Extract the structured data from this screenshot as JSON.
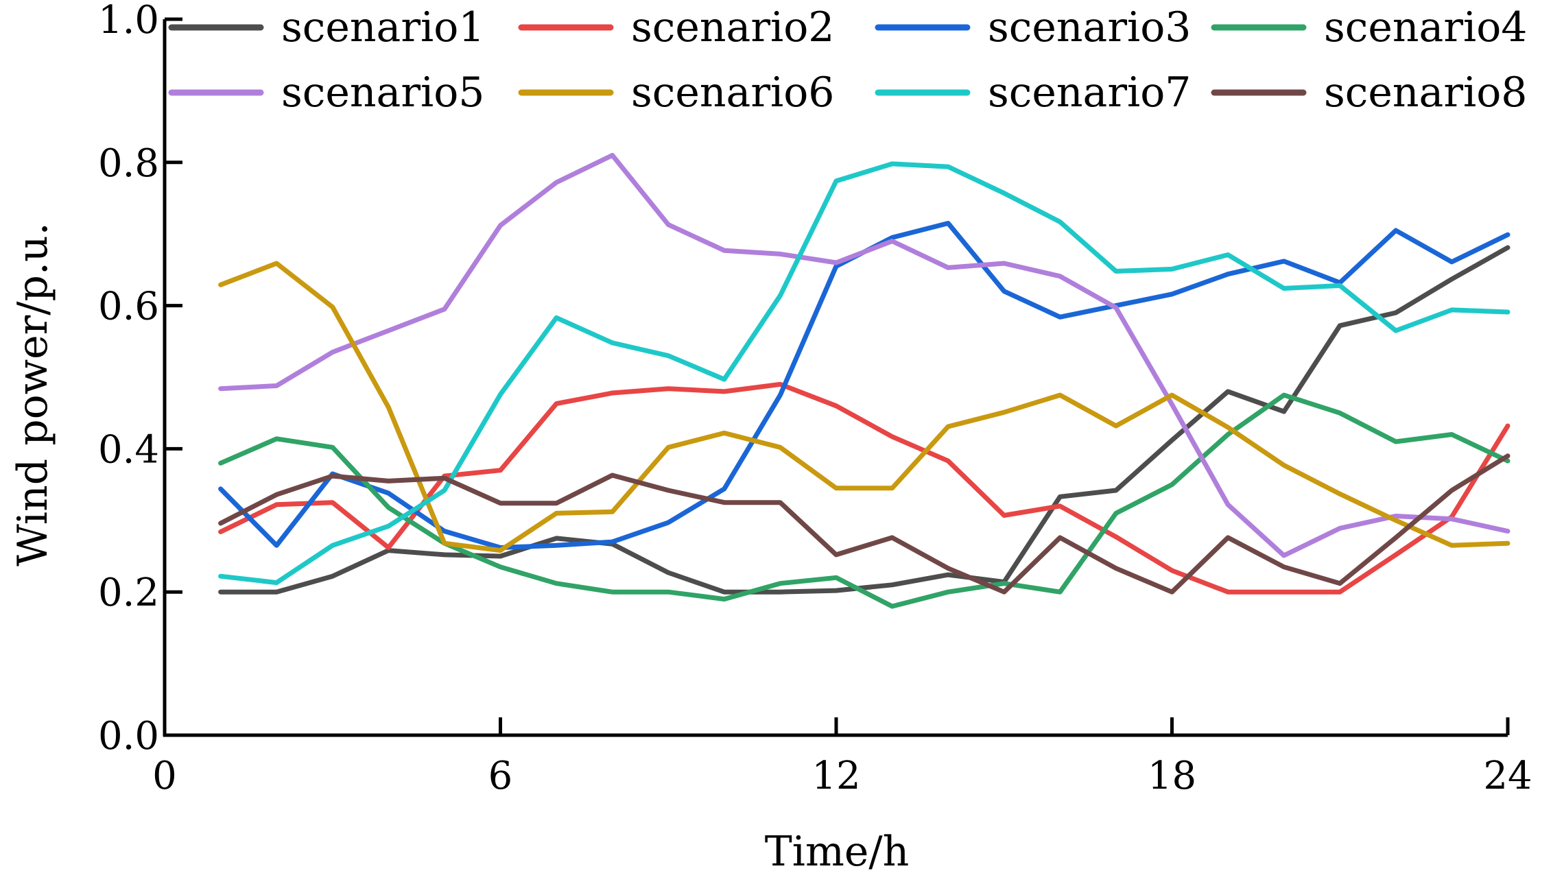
{
  "chart_data": {
    "type": "line",
    "title": "",
    "xlabel": "Time/h",
    "ylabel": "Wind power/p.u.",
    "xlim": [
      0,
      24
    ],
    "ylim": [
      0.0,
      1.0
    ],
    "xticks": [
      "0",
      "6",
      "12",
      "18",
      "24"
    ],
    "yticks": [
      "0.0",
      "0.2",
      "0.4",
      "0.6",
      "0.8",
      "1.0"
    ],
    "grid": false,
    "legend_position": "top",
    "x": [
      1,
      2,
      3,
      4,
      5,
      6,
      7,
      8,
      9,
      10,
      11,
      12,
      13,
      14,
      15,
      16,
      17,
      18,
      19,
      20,
      21,
      22,
      23,
      24
    ],
    "series": [
      {
        "name": "scenario1",
        "color": "#4d4d4d",
        "values": [
          0.2,
          0.2,
          0.222,
          0.258,
          0.252,
          0.25,
          0.275,
          0.267,
          0.227,
          0.2,
          0.2,
          0.202,
          0.21,
          0.224,
          0.214,
          0.333,
          0.342,
          0.412,
          0.48,
          0.452,
          0.572,
          0.59,
          0.637,
          0.681
        ]
      },
      {
        "name": "scenario2",
        "color": "#e84545",
        "values": [
          0.284,
          0.322,
          0.325,
          0.262,
          0.362,
          0.37,
          0.463,
          0.478,
          0.484,
          0.48,
          0.49,
          0.46,
          0.417,
          0.383,
          0.307,
          0.32,
          0.277,
          0.23,
          0.2,
          0.2,
          0.2,
          0.252,
          0.305,
          0.432
        ]
      },
      {
        "name": "scenario3",
        "color": "#1a66d6",
        "values": [
          0.344,
          0.265,
          0.365,
          0.338,
          0.285,
          0.262,
          0.265,
          0.27,
          0.297,
          0.344,
          0.475,
          0.655,
          0.695,
          0.715,
          0.62,
          0.584,
          0.6,
          0.616,
          0.644,
          0.662,
          0.632,
          0.705,
          0.661,
          0.699
        ]
      },
      {
        "name": "scenario4",
        "color": "#30a366",
        "values": [
          0.38,
          0.414,
          0.402,
          0.318,
          0.268,
          0.235,
          0.212,
          0.2,
          0.2,
          0.19,
          0.212,
          0.22,
          0.18,
          0.2,
          0.212,
          0.2,
          0.31,
          0.35,
          0.42,
          0.475,
          0.45,
          0.41,
          0.42,
          0.383
        ]
      },
      {
        "name": "scenario5",
        "color": "#b07fdb",
        "values": [
          0.484,
          0.488,
          0.535,
          0.565,
          0.595,
          0.712,
          0.772,
          0.81,
          0.713,
          0.677,
          0.672,
          0.66,
          0.69,
          0.653,
          0.659,
          0.641,
          0.597,
          0.462,
          0.322,
          0.251,
          0.289,
          0.306,
          0.302,
          0.285
        ]
      },
      {
        "name": "scenario6",
        "color": "#c9990f",
        "values": [
          0.629,
          0.659,
          0.598,
          0.458,
          0.268,
          0.258,
          0.31,
          0.312,
          0.402,
          0.422,
          0.402,
          0.345,
          0.345,
          0.431,
          0.451,
          0.475,
          0.432,
          0.475,
          0.43,
          0.377,
          0.337,
          0.3,
          0.265,
          0.268
        ]
      },
      {
        "name": "scenario7",
        "color": "#1fc8c8",
        "values": [
          0.222,
          0.213,
          0.265,
          0.292,
          0.342,
          0.476,
          0.583,
          0.548,
          0.53,
          0.497,
          0.614,
          0.774,
          0.798,
          0.794,
          0.757,
          0.717,
          0.648,
          0.651,
          0.671,
          0.624,
          0.628,
          0.565,
          0.594,
          0.591
        ]
      },
      {
        "name": "scenario8",
        "color": "#704747",
        "values": [
          0.296,
          0.336,
          0.362,
          0.355,
          0.359,
          0.324,
          0.324,
          0.363,
          0.342,
          0.325,
          0.325,
          0.252,
          0.276,
          0.233,
          0.2,
          0.276,
          0.233,
          0.2,
          0.276,
          0.235,
          0.212,
          0.276,
          0.342,
          0.39
        ]
      }
    ]
  }
}
